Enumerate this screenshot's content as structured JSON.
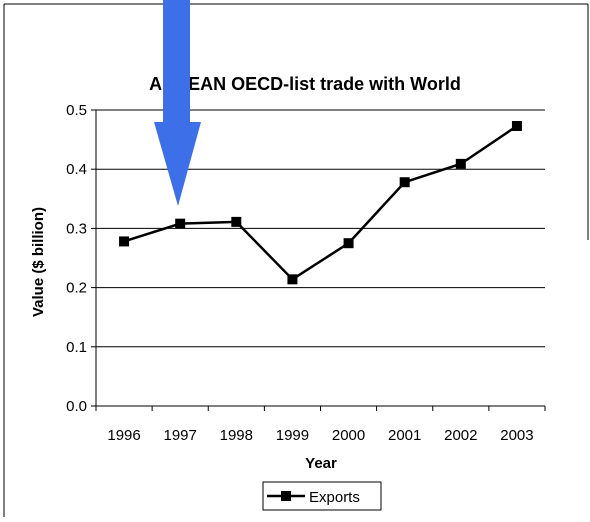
{
  "chart_data": {
    "type": "line",
    "title": "ANDEAN OECD-list trade with World",
    "xlabel": "Year",
    "ylabel": "Value ($ billion)",
    "categories": [
      "1996",
      "1997",
      "1998",
      "1999",
      "2000",
      "2001",
      "2002",
      "2003"
    ],
    "series": [
      {
        "name": "Exports",
        "values": [
          0.278,
          0.308,
          0.311,
          0.214,
          0.275,
          0.378,
          0.409,
          0.473
        ]
      }
    ],
    "ylim": [
      0,
      0.5
    ],
    "yticks": [
      "0.0",
      "0.1",
      "0.2",
      "0.3",
      "0.4",
      "0.5"
    ],
    "grid": true,
    "legend_position": "bottom",
    "annotation": {
      "type": "arrow",
      "points_to": "1997",
      "color": "#3d6fe8"
    }
  }
}
